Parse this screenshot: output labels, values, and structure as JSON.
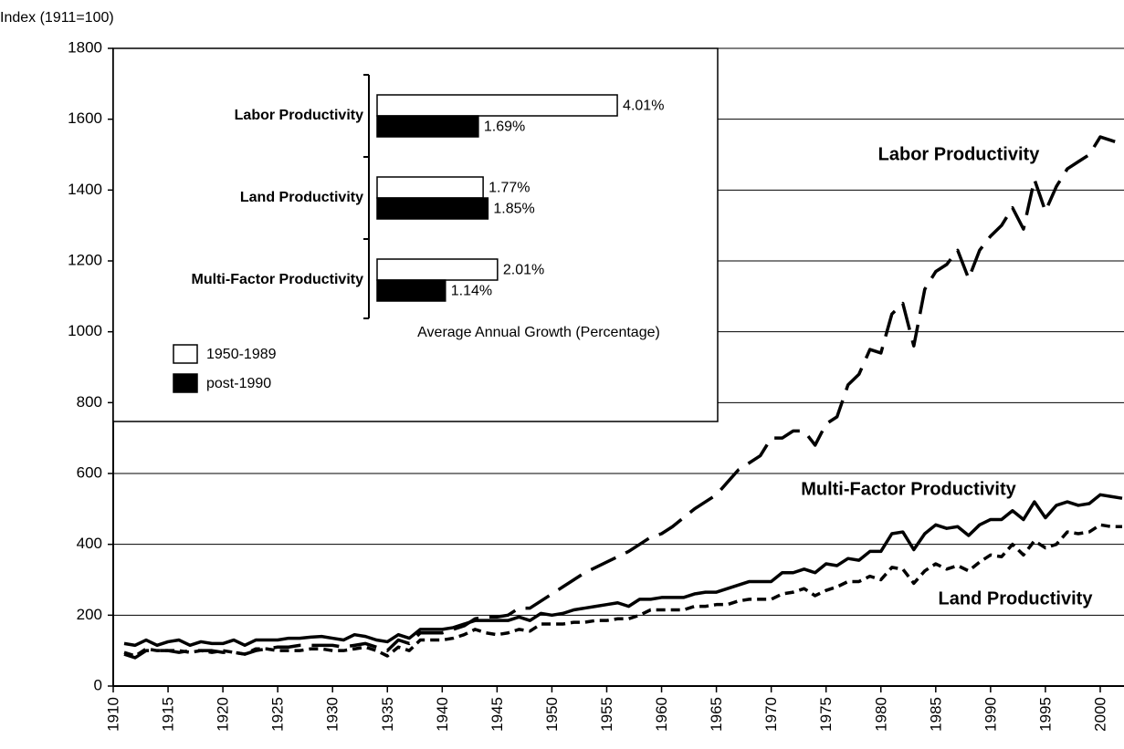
{
  "chart_data": [
    {
      "type": "line",
      "y_axis_label": "Index (1911=100)",
      "x": [
        1911,
        1912,
        1913,
        1914,
        1915,
        1916,
        1917,
        1918,
        1919,
        1920,
        1921,
        1922,
        1923,
        1924,
        1925,
        1926,
        1927,
        1928,
        1929,
        1930,
        1931,
        1932,
        1933,
        1934,
        1935,
        1936,
        1937,
        1938,
        1939,
        1940,
        1941,
        1942,
        1943,
        1944,
        1945,
        1946,
        1947,
        1948,
        1949,
        1950,
        1951,
        1952,
        1953,
        1954,
        1955,
        1956,
        1957,
        1958,
        1959,
        1960,
        1961,
        1962,
        1963,
        1964,
        1965,
        1966,
        1967,
        1968,
        1969,
        1970,
        1971,
        1972,
        1973,
        1974,
        1975,
        1976,
        1977,
        1978,
        1979,
        1980,
        1981,
        1982,
        1983,
        1984,
        1985,
        1986,
        1987,
        1988,
        1989,
        1990,
        1991,
        1992,
        1993,
        1994,
        1995,
        1996,
        1997,
        1998,
        1999,
        2000,
        2001,
        2002
      ],
      "xlim": [
        1910,
        2002
      ],
      "xticks": [
        1910,
        1915,
        1920,
        1925,
        1930,
        1935,
        1940,
        1945,
        1950,
        1955,
        1960,
        1965,
        1970,
        1975,
        1980,
        1985,
        1990,
        1995,
        2000
      ],
      "ylim": [
        0,
        1800
      ],
      "yticks": [
        0,
        200,
        400,
        600,
        800,
        1000,
        1200,
        1400,
        1600,
        1800
      ],
      "grid": true,
      "series": [
        {
          "name": "Labor Productivity",
          "color": "#000000",
          "line_style": "long-dash",
          "values": [
            90,
            80,
            100,
            100,
            100,
            95,
            100,
            100,
            100,
            95,
            95,
            90,
            100,
            105,
            110,
            110,
            115,
            115,
            115,
            115,
            110,
            115,
            120,
            110,
            100,
            130,
            120,
            150,
            150,
            150,
            160,
            170,
            190,
            195,
            195,
            200,
            220,
            220,
            240,
            260,
            280,
            300,
            320,
            335,
            350,
            365,
            380,
            400,
            420,
            430,
            450,
            475,
            500,
            520,
            540,
            575,
            610,
            630,
            650,
            700,
            700,
            720,
            720,
            680,
            740,
            760,
            850,
            880,
            950,
            940,
            1050,
            1080,
            960,
            1120,
            1170,
            1190,
            1230,
            1150,
            1230,
            1270,
            1300,
            1350,
            1290,
            1430,
            1340,
            1410,
            1460,
            1480,
            1500,
            1550,
            1540,
            1530
          ]
        },
        {
          "name": "Multi-Factor Productivity",
          "color": "#000000",
          "line_style": "solid",
          "values": [
            120,
            115,
            130,
            115,
            125,
            130,
            115,
            125,
            120,
            120,
            130,
            115,
            130,
            130,
            130,
            135,
            135,
            138,
            140,
            135,
            130,
            145,
            140,
            130,
            125,
            145,
            135,
            160,
            160,
            160,
            165,
            175,
            185,
            185,
            185,
            185,
            195,
            185,
            205,
            200,
            205,
            215,
            220,
            225,
            230,
            235,
            225,
            245,
            245,
            250,
            250,
            250,
            260,
            265,
            265,
            275,
            285,
            295,
            295,
            295,
            320,
            320,
            330,
            320,
            345,
            340,
            360,
            355,
            380,
            380,
            430,
            435,
            385,
            430,
            455,
            445,
            450,
            425,
            455,
            470,
            470,
            495,
            470,
            520,
            475,
            510,
            520,
            510,
            515,
            540,
            535,
            530
          ]
        },
        {
          "name": "Land Productivity",
          "color": "#000000",
          "line_style": "short-dash",
          "values": [
            95,
            85,
            105,
            100,
            100,
            100,
            95,
            100,
            95,
            100,
            95,
            90,
            105,
            105,
            100,
            100,
            100,
            105,
            105,
            100,
            100,
            105,
            110,
            100,
            85,
            110,
            100,
            130,
            130,
            130,
            135,
            145,
            160,
            150,
            145,
            150,
            160,
            155,
            175,
            175,
            175,
            180,
            180,
            185,
            185,
            190,
            190,
            200,
            215,
            215,
            215,
            215,
            225,
            225,
            230,
            230,
            240,
            245,
            245,
            245,
            260,
            265,
            275,
            255,
            270,
            280,
            295,
            295,
            310,
            300,
            335,
            330,
            290,
            325,
            345,
            330,
            340,
            325,
            350,
            370,
            365,
            400,
            370,
            410,
            390,
            400,
            435,
            430,
            435,
            455,
            450,
            450
          ]
        }
      ]
    },
    {
      "type": "bar",
      "orientation": "horizontal",
      "x_axis_label": "Average Annual Growth (Percentage)",
      "categories": [
        "Labor Productivity",
        "Land Productivity",
        "Multi-Factor Productivity"
      ],
      "series": [
        {
          "name": "1950-1989",
          "color": "#ffffff",
          "values": [
            4.01,
            1.77,
            2.01
          ],
          "value_labels": [
            "4.01%",
            "1.77%",
            "2.01%"
          ]
        },
        {
          "name": "post-1990",
          "color": "#000000",
          "values": [
            1.69,
            1.85,
            1.14
          ],
          "value_labels": [
            "1.69%",
            "1.85%",
            "1.14%"
          ]
        }
      ]
    }
  ]
}
